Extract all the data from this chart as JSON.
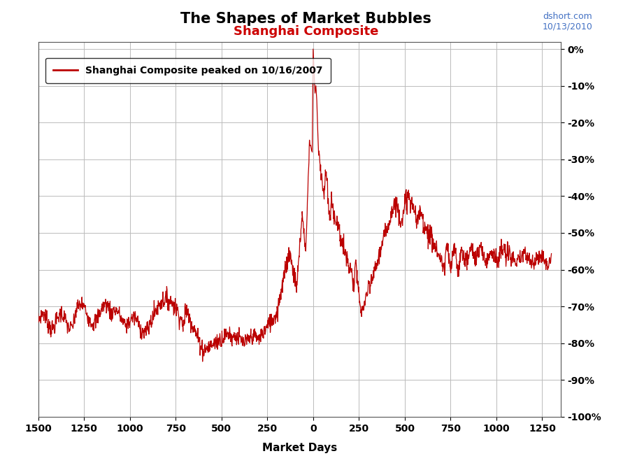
{
  "title1": "The Shapes of Market Bubbles",
  "title2": "Shanghai Composite",
  "watermark_line1": "dshort.com",
  "watermark_line2": "10/13/2010",
  "xlabel": "Market Days",
  "legend_label": "Shanghai Composite peaked on 10/16/2007",
  "line_color": "#bb0000",
  "title1_color": "#000000",
  "title2_color": "#cc0000",
  "watermark_color": "#4472c4",
  "xlim": [
    -1500,
    1350
  ],
  "ylim_bottom": -100,
  "ylim_top": 2,
  "xticks": [
    -1500,
    -1250,
    -1000,
    -750,
    -500,
    -250,
    0,
    250,
    500,
    750,
    1000,
    1250
  ],
  "yticks": [
    0,
    -10,
    -20,
    -30,
    -40,
    -50,
    -60,
    -70,
    -80,
    -90,
    -100
  ],
  "ytick_labels": [
    "0%",
    "-10%",
    "-20%",
    "-30%",
    "-40%",
    "-50%",
    "-60%",
    "-70%",
    "-80%",
    "-90%",
    "-100%"
  ],
  "background_color": "#ffffff",
  "grid_color": "#bbbbbb"
}
